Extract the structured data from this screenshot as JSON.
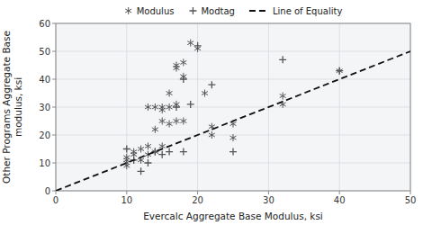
{
  "chart_data": {
    "type": "scatter",
    "xlabel": "Evercalc  Aggregate Base Modulus, ksi",
    "ylabel": "Other Programs Aggregate Base\nmodulus, ksi",
    "xlim": [
      0,
      50
    ],
    "ylim": [
      0,
      60
    ],
    "xticks": [
      0,
      10,
      20,
      30,
      40,
      50
    ],
    "yticks": [
      0,
      10,
      20,
      30,
      40,
      50,
      60
    ],
    "grid": true,
    "legend": "top",
    "series": [
      {
        "name": "Modulus",
        "type": "scatter",
        "marker": "asterisk",
        "color": "#555555",
        "x": [
          10,
          10,
          10,
          10,
          11,
          11,
          12,
          12,
          13,
          13,
          13,
          14,
          14,
          14,
          15,
          15,
          15,
          15,
          16,
          16,
          16,
          17,
          17,
          17,
          17,
          18,
          18,
          18,
          19,
          20,
          21,
          22,
          22,
          25,
          25,
          32,
          32,
          40
        ],
        "values": [
          10,
          11,
          12,
          9,
          13,
          14,
          11,
          15,
          16,
          13,
          30,
          14,
          22,
          30,
          25,
          29,
          30,
          16,
          30,
          35,
          24,
          25,
          45,
          44,
          31,
          41,
          46,
          25,
          53,
          51,
          35,
          23,
          20,
          24,
          19,
          31,
          34,
          43
        ]
      },
      {
        "name": "Modtag",
        "type": "scatter",
        "marker": "plus",
        "color": "#555555",
        "x": [
          10,
          11,
          12,
          13,
          14,
          15,
          16,
          17,
          18,
          18,
          19,
          20,
          22,
          25,
          32,
          40
        ],
        "values": [
          15,
          11,
          7,
          10,
          14,
          13,
          14,
          30,
          40,
          14,
          31,
          52,
          38,
          14,
          47,
          43
        ]
      },
      {
        "name": "Line of Equality",
        "type": "line",
        "line_style": "dashed",
        "color": "#111111",
        "x": [
          0,
          50
        ],
        "values": [
          0,
          50
        ]
      }
    ]
  }
}
